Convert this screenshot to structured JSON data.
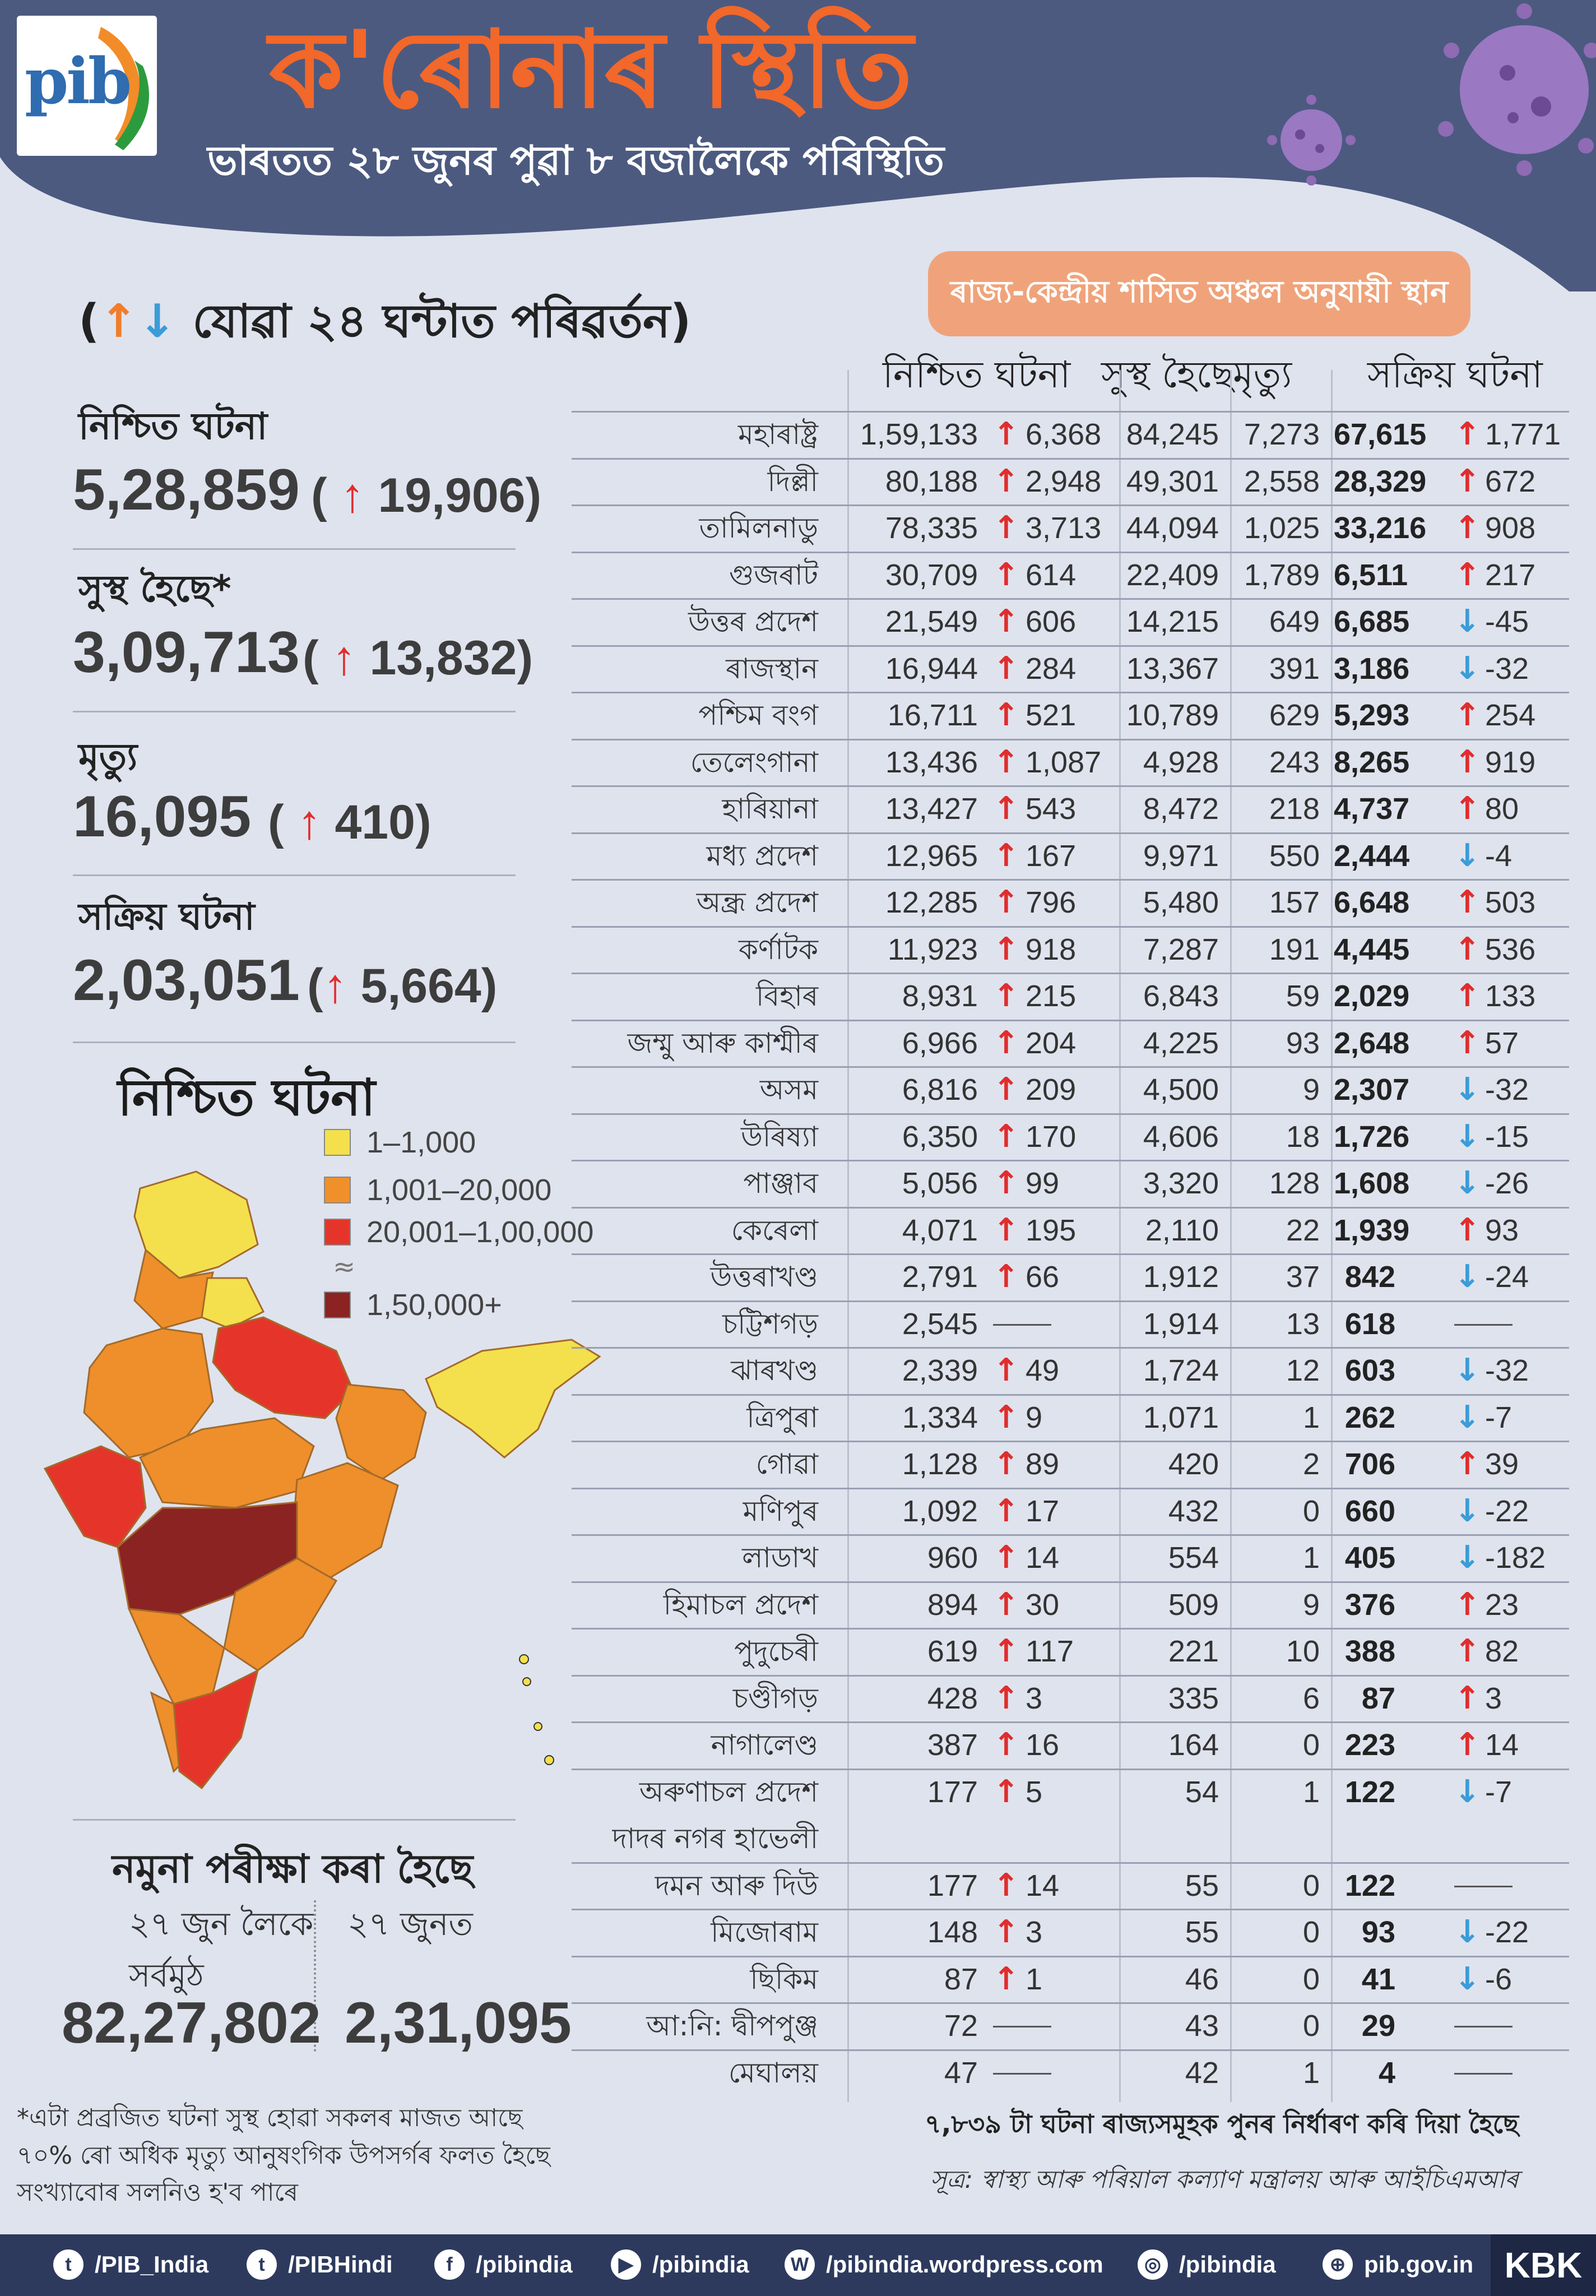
{
  "header": {
    "logo_text": "pib",
    "title": "ক'ৰোনাৰ স্থিতি",
    "subtitle": "ভাৰতত ২৮ জুনৰ পুৱা ৮ বজালৈকে পৰিস্থিতি"
  },
  "summary": {
    "change_heading": "যোৱা ২৪ ঘন্টাত পৰিৱৰ্তন)",
    "change_open": "(",
    "up_glyph": "↑",
    "down_glyph": "↓",
    "stats": [
      {
        "label": "নিশ্চিত ঘটনা",
        "value": "5,28,859",
        "delta": "19,906)",
        "delta_open": "("
      },
      {
        "label": "সুস্থ হৈছে*",
        "value": "3,09,713",
        "delta": "13,832)",
        "delta_open": "("
      },
      {
        "label": "মৃত্যু",
        "value": "16,095",
        "delta": "410)",
        "delta_open": "("
      },
      {
        "label": "সক্ৰিয় ঘটনা",
        "value": "2,03,051",
        "delta": "5,664)",
        "delta_open": "("
      }
    ]
  },
  "map": {
    "heading": "নিশ্চিত ঘটনা",
    "legend": [
      {
        "label": "1–1,000",
        "color": "#f4e04d"
      },
      {
        "label": "1,001–20,000",
        "color": "#f0902a"
      },
      {
        "label": "20,001–1,00,000",
        "color": "#e5352b"
      },
      {
        "label": "1,50,000+",
        "color": "#8b2323"
      }
    ],
    "colors": {
      "yellow": "#f4e04d",
      "orange": "#ee8f2b",
      "deep_orange": "#e06a1e",
      "red": "#e5352b",
      "maroon": "#8b2323"
    }
  },
  "tests": {
    "heading": "নমুনা পৰীক্ষা কৰা হৈছে",
    "cumulative_label": "২৭ জুন লৈকে",
    "day_label": "২৭ জুনত",
    "total_label": "সৰ্বমুঠ",
    "cumulative": "82,27,802",
    "day": "2,31,095"
  },
  "footnotes": [
    "*এটা প্ৰব্ৰজিত ঘটনা সুস্থ হোৱা সকলৰ মাজত আছে",
    "৭০% ৰো অধিক মৃত্যু আনুষংগিক উপসৰ্গৰ ফলত হৈছে",
    "সংখ্যাবোৰ সলনিও হ'ব পাৰে"
  ],
  "table": {
    "title": "ৰাজ্য-কেন্দ্ৰীয় শাসিত অঞ্চল অনুযায়ী স্থান",
    "columns": [
      "নিশ্চিত ঘটনা",
      "সুস্থ হৈছে",
      "মৃত্যু",
      "সক্ৰিয় ঘটনা"
    ],
    "rows": [
      {
        "state": "মহাৰাষ্ট্ৰ",
        "confirmed": "1,59,133",
        "c_dir": "up",
        "c_delta": "6,368",
        "cured": "84,245",
        "deaths": "7,273",
        "active": "67,615",
        "a_dir": "up",
        "a_delta": "1,771"
      },
      {
        "state": "দিল্লী",
        "confirmed": "80,188",
        "c_dir": "up",
        "c_delta": "2,948",
        "cured": "49,301",
        "deaths": "2,558",
        "active": "28,329",
        "a_dir": "up",
        "a_delta": "672"
      },
      {
        "state": "তামিলনাডু",
        "confirmed": "78,335",
        "c_dir": "up",
        "c_delta": "3,713",
        "cured": "44,094",
        "deaths": "1,025",
        "active": "33,216",
        "a_dir": "up",
        "a_delta": "908"
      },
      {
        "state": "গুজৰাট",
        "confirmed": "30,709",
        "c_dir": "up",
        "c_delta": "614",
        "cured": "22,409",
        "deaths": "1,789",
        "active": "6,511",
        "a_dir": "up",
        "a_delta": "217"
      },
      {
        "state": "উত্তৰ প্ৰদেশ",
        "confirmed": "21,549",
        "c_dir": "up",
        "c_delta": "606",
        "cured": "14,215",
        "deaths": "649",
        "active": "6,685",
        "a_dir": "down",
        "a_delta": "-45"
      },
      {
        "state": "ৰাজস্থান",
        "confirmed": "16,944",
        "c_dir": "up",
        "c_delta": "284",
        "cured": "13,367",
        "deaths": "391",
        "active": "3,186",
        "a_dir": "down",
        "a_delta": "-32"
      },
      {
        "state": "পশ্চিম বংগ",
        "confirmed": "16,711",
        "c_dir": "up",
        "c_delta": "521",
        "cured": "10,789",
        "deaths": "629",
        "active": "5,293",
        "a_dir": "up",
        "a_delta": "254"
      },
      {
        "state": "তেলেংগানা",
        "confirmed": "13,436",
        "c_dir": "up",
        "c_delta": "1,087",
        "cured": "4,928",
        "deaths": "243",
        "active": "8,265",
        "a_dir": "up",
        "a_delta": "919"
      },
      {
        "state": "হাৰিয়ানা",
        "confirmed": "13,427",
        "c_dir": "up",
        "c_delta": "543",
        "cured": "8,472",
        "deaths": "218",
        "active": "4,737",
        "a_dir": "up",
        "a_delta": "80"
      },
      {
        "state": "মধ্য প্ৰদেশ",
        "confirmed": "12,965",
        "c_dir": "up",
        "c_delta": "167",
        "cured": "9,971",
        "deaths": "550",
        "active": "2,444",
        "a_dir": "down",
        "a_delta": "-4"
      },
      {
        "state": "অন্ধ্ৰ প্ৰদেশ",
        "confirmed": "12,285",
        "c_dir": "up",
        "c_delta": "796",
        "cured": "5,480",
        "deaths": "157",
        "active": "6,648",
        "a_dir": "up",
        "a_delta": "503"
      },
      {
        "state": "কৰ্ণাটক",
        "confirmed": "11,923",
        "c_dir": "up",
        "c_delta": "918",
        "cured": "7,287",
        "deaths": "191",
        "active": "4,445",
        "a_dir": "up",
        "a_delta": "536"
      },
      {
        "state": "বিহাৰ",
        "confirmed": "8,931",
        "c_dir": "up",
        "c_delta": "215",
        "cured": "6,843",
        "deaths": "59",
        "active": "2,029",
        "a_dir": "up",
        "a_delta": "133"
      },
      {
        "state": "জম্মু আৰু কাশ্মীৰ",
        "confirmed": "6,966",
        "c_dir": "up",
        "c_delta": "204",
        "cured": "4,225",
        "deaths": "93",
        "active": "2,648",
        "a_dir": "up",
        "a_delta": "57"
      },
      {
        "state": "অসম",
        "confirmed": "6,816",
        "c_dir": "up",
        "c_delta": "209",
        "cured": "4,500",
        "deaths": "9",
        "active": "2,307",
        "a_dir": "down",
        "a_delta": "-32"
      },
      {
        "state": "উৰিষ্যা",
        "confirmed": "6,350",
        "c_dir": "up",
        "c_delta": "170",
        "cured": "4,606",
        "deaths": "18",
        "active": "1,726",
        "a_dir": "down",
        "a_delta": "-15"
      },
      {
        "state": "পাঞ্জাব",
        "confirmed": "5,056",
        "c_dir": "up",
        "c_delta": "99",
        "cured": "3,320",
        "deaths": "128",
        "active": "1,608",
        "a_dir": "down",
        "a_delta": "-26"
      },
      {
        "state": "কেৰেলা",
        "confirmed": "4,071",
        "c_dir": "up",
        "c_delta": "195",
        "cured": "2,110",
        "deaths": "22",
        "active": "1,939",
        "a_dir": "up",
        "a_delta": "93"
      },
      {
        "state": "উত্তৰাখণ্ড",
        "confirmed": "2,791",
        "c_dir": "up",
        "c_delta": "66",
        "cured": "1,912",
        "deaths": "37",
        "active": "842",
        "a_dir": "down",
        "a_delta": "-24"
      },
      {
        "state": "চট্টিশগড়",
        "confirmed": "2,545",
        "c_dir": "none",
        "c_delta": "",
        "cured": "1,914",
        "deaths": "13",
        "active": "618",
        "a_dir": "none",
        "a_delta": ""
      },
      {
        "state": "ঝাৰখণ্ড",
        "confirmed": "2,339",
        "c_dir": "up",
        "c_delta": "49",
        "cured": "1,724",
        "deaths": "12",
        "active": "603",
        "a_dir": "down",
        "a_delta": "-32"
      },
      {
        "state": "ত্ৰিপুৰা",
        "confirmed": "1,334",
        "c_dir": "up",
        "c_delta": "9",
        "cured": "1,071",
        "deaths": "1",
        "active": "262",
        "a_dir": "down",
        "a_delta": "-7"
      },
      {
        "state": "গোৱা",
        "confirmed": "1,128",
        "c_dir": "up",
        "c_delta": "89",
        "cured": "420",
        "deaths": "2",
        "active": "706",
        "a_dir": "up",
        "a_delta": "39"
      },
      {
        "state": "মণিপুৰ",
        "confirmed": "1,092",
        "c_dir": "up",
        "c_delta": "17",
        "cured": "432",
        "deaths": "0",
        "active": "660",
        "a_dir": "down",
        "a_delta": "-22"
      },
      {
        "state": "লাডাখ",
        "confirmed": "960",
        "c_dir": "up",
        "c_delta": "14",
        "cured": "554",
        "deaths": "1",
        "active": "405",
        "a_dir": "down",
        "a_delta": "-182"
      },
      {
        "state": "হিমাচল প্ৰদেশ",
        "confirmed": "894",
        "c_dir": "up",
        "c_delta": "30",
        "cured": "509",
        "deaths": "9",
        "active": "376",
        "a_dir": "up",
        "a_delta": "23"
      },
      {
        "state": "পুদুচেৰী",
        "confirmed": "619",
        "c_dir": "up",
        "c_delta": "117",
        "cured": "221",
        "deaths": "10",
        "active": "388",
        "a_dir": "up",
        "a_delta": "82"
      },
      {
        "state": "চণ্ডীগড়",
        "confirmed": "428",
        "c_dir": "up",
        "c_delta": "3",
        "cured": "335",
        "deaths": "6",
        "active": "87",
        "a_dir": "up",
        "a_delta": "3"
      },
      {
        "state": "নাগালেণ্ড",
        "confirmed": "387",
        "c_dir": "up",
        "c_delta": "16",
        "cured": "164",
        "deaths": "0",
        "active": "223",
        "a_dir": "up",
        "a_delta": "14"
      },
      {
        "state": "অৰুণাচল প্ৰদেশ",
        "confirmed": "177",
        "c_dir": "up",
        "c_delta": "5",
        "cured": "54",
        "deaths": "1",
        "active": "122",
        "a_dir": "down",
        "a_delta": "-7"
      },
      {
        "state": "দাদৰ নগৰ হাভেলী",
        "state2": "দমন আৰু দিউ",
        "confirmed": "177",
        "c_dir": "up",
        "c_delta": "14",
        "cured": "55",
        "deaths": "0",
        "active": "122",
        "a_dir": "none",
        "a_delta": ""
      },
      {
        "state": "মিজোৰাম",
        "confirmed": "148",
        "c_dir": "up",
        "c_delta": "3",
        "cured": "55",
        "deaths": "0",
        "active": "93",
        "a_dir": "down",
        "a_delta": "-22"
      },
      {
        "state": "ছিকিম",
        "confirmed": "87",
        "c_dir": "up",
        "c_delta": "1",
        "cured": "46",
        "deaths": "0",
        "active": "41",
        "a_dir": "down",
        "a_delta": "-6"
      },
      {
        "state": "আ:নি: দ্বীপপুঞ্জ",
        "confirmed": "72",
        "c_dir": "none",
        "c_delta": "",
        "cured": "43",
        "deaths": "0",
        "active": "29",
        "a_dir": "none",
        "a_delta": ""
      },
      {
        "state": "মেঘালয়",
        "confirmed": "47",
        "c_dir": "none",
        "c_delta": "",
        "cured": "42",
        "deaths": "1",
        "active": "4",
        "a_dir": "none",
        "a_delta": ""
      }
    ],
    "recount_note": "৭,৮৩৯ টা ঘটনা ৰাজ্যসমূহক পুনৰ নিৰ্ধাৰণ কৰি দিয়া হৈছে",
    "source_note": "সূত্ৰ: স্বাস্থ্য আৰু পৰিয়াল কল্যাণ মন্ত্ৰালয় আৰু আইচিএমআৰ"
  },
  "footer": {
    "links": [
      {
        "icon": "twitter-icon",
        "glyph": "t",
        "label": "/PIB_India"
      },
      {
        "icon": "twitter-icon",
        "glyph": "t",
        "label": "/PIBHindi"
      },
      {
        "icon": "facebook-icon",
        "glyph": "f",
        "label": "/pibindia"
      },
      {
        "icon": "youtube-icon",
        "glyph": "▶",
        "label": "/pibindia"
      },
      {
        "icon": "wordpress-icon",
        "glyph": "W",
        "label": "/pibindia.wordpress.com"
      },
      {
        "icon": "instagram-icon",
        "glyph": "◎",
        "label": "/pibindia"
      },
      {
        "icon": "globe-icon",
        "glyph": "⊕",
        "label": "pib.gov.in"
      }
    ],
    "badge": "KBK"
  }
}
